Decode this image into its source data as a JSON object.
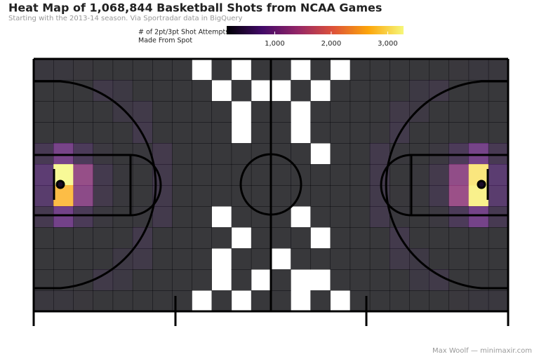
{
  "chart_data": {
    "type": "heatmap",
    "title": "Heat Map of 1,068,844 Basketball Shots from NCAA Games",
    "subtitle": "Starting with the 2013-14 season. Via Sportradar data in BigQuery",
    "legend_title": [
      "# of 2pt/3pt Shot Attempts",
      "Made From Spot"
    ],
    "footer": "Max Woolf — minimaxir.com",
    "xlim": [
      0,
      94
    ],
    "ylim": [
      0,
      50
    ],
    "zlim": [
      150,
      3280
    ],
    "zticks": [
      {
        "value": 1000,
        "label": "1,000"
      },
      {
        "value": 2000,
        "label": "2,000"
      },
      {
        "value": 3000,
        "label": "3,000"
      }
    ],
    "colors": [
      "#000004",
      "#420a68",
      "#932667",
      "#dd513a",
      "#fca50a",
      "#f6f77a"
    ],
    "z": [
      [
        180,
        180,
        170,
        150,
        90,
        25,
        5,
        2,
        null,
        1,
        null,
        1,
        1,
        null,
        2,
        null,
        3,
        6,
        30,
        95,
        150,
        170,
        180,
        175
      ],
      [
        120,
        130,
        140,
        260,
        220,
        90,
        20,
        3,
        1,
        null,
        2,
        null,
        null,
        1,
        null,
        1,
        4,
        22,
        95,
        220,
        255,
        140,
        130,
        120
      ],
      [
        110,
        110,
        110,
        120,
        230,
        260,
        80,
        10,
        2,
        1,
        null,
        1,
        2,
        null,
        1,
        2,
        12,
        85,
        255,
        225,
        120,
        110,
        110,
        110
      ],
      [
        130,
        130,
        140,
        130,
        130,
        280,
        150,
        25,
        3,
        1,
        null,
        2,
        1,
        null,
        1,
        3,
        28,
        155,
        275,
        130,
        130,
        140,
        130,
        130
      ],
      [
        350,
        900,
        400,
        200,
        140,
        160,
        290,
        90,
        5,
        1,
        2,
        3,
        2,
        1,
        null,
        6,
        95,
        285,
        160,
        140,
        200,
        390,
        880,
        340
      ],
      [
        600,
        3300,
        1200,
        300,
        160,
        150,
        280,
        140,
        10,
        2,
        1,
        4,
        5,
        2,
        1,
        12,
        135,
        280,
        150,
        160,
        290,
        1150,
        3100,
        580
      ],
      [
        550,
        2700,
        1100,
        290,
        160,
        150,
        280,
        140,
        9,
        1,
        2,
        5,
        4,
        1,
        2,
        10,
        130,
        275,
        155,
        160,
        300,
        1250,
        3200,
        560
      ],
      [
        320,
        850,
        380,
        190,
        140,
        160,
        280,
        85,
        4,
        null,
        1,
        3,
        3,
        null,
        1,
        5,
        90,
        280,
        160,
        140,
        195,
        390,
        870,
        330
      ],
      [
        130,
        130,
        140,
        130,
        130,
        280,
        150,
        25,
        3,
        1,
        null,
        2,
        1,
        1,
        null,
        3,
        26,
        150,
        280,
        130,
        130,
        140,
        130,
        130
      ],
      [
        110,
        110,
        110,
        120,
        230,
        260,
        80,
        10,
        2,
        null,
        1,
        1,
        null,
        1,
        1,
        2,
        10,
        80,
        260,
        230,
        120,
        110,
        110,
        110
      ],
      [
        120,
        130,
        140,
        260,
        220,
        90,
        20,
        3,
        1,
        null,
        2,
        null,
        1,
        null,
        null,
        2,
        3,
        20,
        90,
        220,
        260,
        140,
        130,
        120
      ],
      [
        180,
        180,
        170,
        150,
        90,
        25,
        5,
        2,
        null,
        1,
        null,
        1,
        1,
        null,
        1,
        null,
        2,
        5,
        25,
        90,
        150,
        170,
        180,
        180
      ]
    ]
  }
}
